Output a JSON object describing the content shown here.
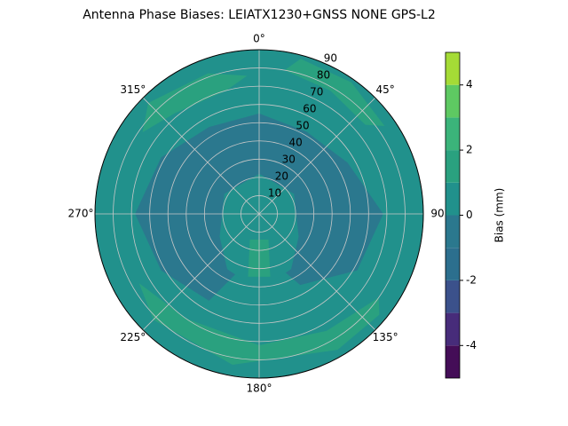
{
  "chart_data": {
    "type": "polar_contour",
    "title": "Antenna Phase Biases: LEIATX1230+GNSS NONE GPS-L2",
    "rlim": [
      0,
      90
    ],
    "rticks": [
      10,
      20,
      30,
      40,
      50,
      60,
      70,
      80,
      90
    ],
    "thetaticks": [
      {
        "value": 0,
        "label": "0°"
      },
      {
        "value": 45,
        "label": "45°"
      },
      {
        "value": 90,
        "label": "90"
      },
      {
        "value": 135,
        "label": "135°"
      },
      {
        "value": 180,
        "label": "180°"
      },
      {
        "value": 225,
        "label": "225°"
      },
      {
        "value": 270,
        "label": "270°"
      },
      {
        "value": 315,
        "label": "315°"
      }
    ],
    "grid": true,
    "colorbar": {
      "label": "Bias (mm)",
      "clim": [
        -5,
        5
      ],
      "ticks": [
        -4,
        -2,
        0,
        2,
        4
      ],
      "levels": [
        -5,
        -4,
        -3,
        -2,
        -1,
        0,
        1,
        2,
        3,
        4,
        5
      ],
      "colors": [
        "#440d57",
        "#472c7a",
        "#3b518b",
        "#2c6f8e",
        "#2b788e",
        "#21918c",
        "#2aa17f",
        "#3bb47a",
        "#5ec962",
        "#a5db36",
        "#fde725"
      ]
    },
    "background": [
      0,
      1
    ],
    "regions": [
      {
        "band": [
          -1,
          0
        ],
        "az": [
          0,
          30,
          60,
          90,
          120,
          150,
          180,
          210,
          240,
          270,
          300,
          330
        ],
        "r": [
          55,
          52,
          56,
          68,
          62,
          45,
          20,
          55,
          62,
          68,
          62,
          55
        ]
      },
      {
        "band": [
          0,
          1
        ],
        "az": [
          0,
          60,
          120,
          150,
          180,
          210,
          240,
          300
        ],
        "r": [
          22,
          22,
          25,
          35,
          42,
          35,
          25,
          22
        ]
      },
      {
        "band": [
          1,
          2
        ],
        "az": [
          160,
          170,
          190,
          200
        ],
        "r": [
          15,
          35,
          35,
          15
        ]
      },
      {
        "band": [
          1,
          2
        ],
        "az": [
          305,
          320,
          345,
          355,
          340,
          315
        ],
        "r": [
          78,
          72,
          70,
          76,
          82,
          86
        ]
      },
      {
        "band": [
          1,
          2
        ],
        "az": [
          10,
          30,
          50,
          55,
          35,
          15
        ],
        "r": [
          80,
          78,
          76,
          84,
          88,
          88
        ]
      },
      {
        "band": [
          1,
          2
        ],
        "az": [
          125,
          150,
          180,
          215,
          240,
          225,
          190,
          150,
          130
        ],
        "r": [
          80,
          74,
          72,
          70,
          76,
          82,
          84,
          86,
          86
        ]
      }
    ]
  }
}
